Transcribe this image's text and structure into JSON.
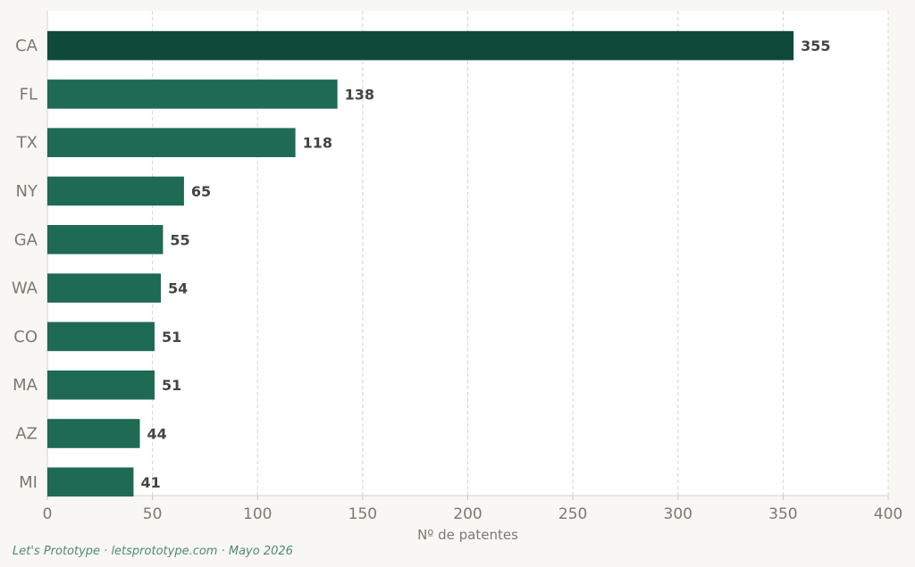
{
  "chart_data": {
    "type": "bar",
    "orientation": "horizontal",
    "categories": [
      "CA",
      "FL",
      "TX",
      "NY",
      "GA",
      "WA",
      "CO",
      "MA",
      "AZ",
      "MI"
    ],
    "values": [
      355,
      138,
      118,
      65,
      55,
      54,
      51,
      51,
      44,
      41
    ],
    "value_labels": [
      "355",
      "138",
      "118",
      "65",
      "55",
      "54",
      "51",
      "51",
      "44",
      "41"
    ],
    "xlabel": "Nº de patentes",
    "ylabel": "",
    "title": "",
    "xlim": [
      0,
      400
    ],
    "xticks": [
      0,
      50,
      100,
      150,
      200,
      250,
      300,
      350,
      400
    ],
    "xtick_labels": [
      "0",
      "50",
      "100",
      "150",
      "200",
      "250",
      "300",
      "350",
      "400"
    ],
    "grid": "vertical dashed",
    "legend": "none",
    "colors": {
      "highlight_bar": "#0f4a39",
      "bar": "#1e6a53",
      "plot_background": "#ffffff",
      "page_background": "#f8f7f4"
    }
  },
  "footer": {
    "text": "Let's Prototype · letsprototype.com · Mayo 2026"
  }
}
